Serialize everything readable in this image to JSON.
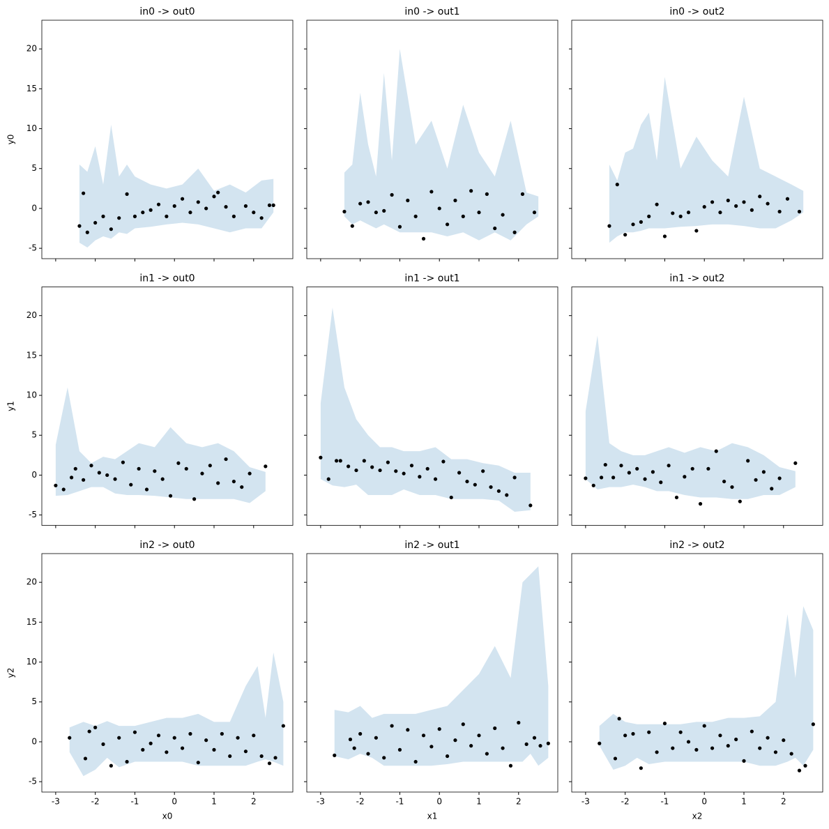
{
  "chart_data": [
    {
      "type": "scatter",
      "title": "in0 -> out0",
      "ylabel": "y0",
      "color": "#000000",
      "band_color": "#d3e4f0",
      "x": [
        -2.4,
        -2.3,
        -2.2,
        -2,
        -1.8,
        -1.6,
        -1.4,
        -1.2,
        -1,
        -0.8,
        -0.6,
        -0.4,
        -0.2,
        0,
        0.2,
        0.4,
        0.6,
        0.8,
        1,
        1.1,
        1.3,
        1.5,
        1.8,
        2,
        2.2,
        2.4,
        2.5
      ],
      "y": [
        -2.2,
        1.9,
        -3,
        -1.8,
        -1,
        -2.6,
        -1.2,
        1.8,
        -1,
        -0.5,
        -0.2,
        0.5,
        -1,
        0.3,
        1.2,
        -0.5,
        0.8,
        0,
        1.5,
        2,
        0.2,
        -1,
        0.3,
        -0.5,
        -1.2,
        0.4,
        0.4
      ],
      "band": {
        "x": [
          -2.4,
          -2.2,
          -2,
          -1.8,
          -1.6,
          -1.4,
          -1.2,
          -1,
          -0.6,
          -0.2,
          0.2,
          0.6,
          1,
          1.4,
          1.8,
          2.2,
          2.5
        ],
        "lower": [
          -4.3,
          -4.9,
          -4,
          -3.5,
          -3.8,
          -3,
          -3.2,
          -2.5,
          -2.3,
          -2,
          -1.8,
          -2,
          -2.5,
          -3,
          -2.5,
          -2.5,
          -0.5
        ],
        "upper": [
          5.5,
          4.6,
          7.8,
          3,
          10.5,
          4,
          5.5,
          4,
          3,
          2.5,
          3,
          5,
          2.2,
          3,
          2,
          3.5,
          3.7
        ]
      },
      "xlim": [
        -3.35,
        2.99
      ],
      "ylim": [
        -6.3,
        23.6
      ],
      "xticks": [
        -3,
        -2,
        -1,
        0,
        1,
        2
      ],
      "yticks": [
        -5,
        0,
        5,
        10,
        15,
        20
      ],
      "xtick_labels": false,
      "ytick_labels": true
    },
    {
      "type": "scatter",
      "title": "in0 -> out1",
      "color": "#000000",
      "band_color": "#d3e4f0",
      "x": [
        -2.4,
        -2.2,
        -2,
        -1.8,
        -1.6,
        -1.4,
        -1.2,
        -1,
        -0.8,
        -0.6,
        -0.4,
        -0.2,
        0,
        0.2,
        0.4,
        0.6,
        0.8,
        1,
        1.2,
        1.4,
        1.6,
        1.9,
        2.1,
        2.4
      ],
      "y": [
        -0.4,
        -2.2,
        0.6,
        0.8,
        -0.5,
        -0.3,
        1.7,
        -2.3,
        1,
        -1,
        -3.8,
        2.1,
        0,
        -2,
        1,
        -1,
        2.2,
        -0.5,
        1.8,
        -2.5,
        -0.8,
        -3,
        1.8,
        -0.5
      ],
      "band": {
        "x": [
          -2.4,
          -2.2,
          -2,
          -1.8,
          -1.6,
          -1.4,
          -1.2,
          -1,
          -0.6,
          -0.2,
          0.2,
          0.6,
          1,
          1.4,
          1.8,
          2.2,
          2.5
        ],
        "lower": [
          -1,
          -2,
          -1.5,
          -2,
          -2.5,
          -2,
          -2.5,
          -3,
          -3,
          -3,
          -3.5,
          -3,
          -4,
          -3,
          -4,
          -2,
          -1
        ],
        "upper": [
          4.5,
          5.5,
          14.5,
          8,
          4,
          17,
          6,
          20,
          8,
          11,
          5,
          13,
          7,
          4,
          11,
          2,
          1.5
        ]
      },
      "xlim": [
        -3.35,
        2.99
      ],
      "ylim": [
        -6.3,
        23.6
      ],
      "xticks": [
        -3,
        -2,
        -1,
        0,
        1,
        2
      ],
      "yticks": [
        -5,
        0,
        5,
        10,
        15,
        20
      ],
      "xtick_labels": false,
      "ytick_labels": false
    },
    {
      "type": "scatter",
      "title": "in0 -> out2",
      "color": "#000000",
      "band_color": "#d3e4f0",
      "x": [
        -2.4,
        -2.2,
        -2,
        -1.8,
        -1.6,
        -1.4,
        -1.2,
        -1,
        -0.8,
        -0.6,
        -0.4,
        -0.2,
        0,
        0.2,
        0.4,
        0.6,
        0.8,
        1,
        1.2,
        1.4,
        1.6,
        1.9,
        2.1,
        2.4
      ],
      "y": [
        -2.2,
        3,
        -3.3,
        -2,
        -1.7,
        -1,
        0.5,
        -3.5,
        -0.6,
        -1,
        -0.5,
        -2.8,
        0.2,
        0.8,
        -0.5,
        1,
        0.3,
        0.8,
        -0.2,
        1.5,
        0.6,
        -0.4,
        1.2,
        -0.4
      ],
      "band": {
        "x": [
          -2.4,
          -2.2,
          -2,
          -1.8,
          -1.6,
          -1.4,
          -1.2,
          -1,
          -0.6,
          -0.2,
          0.2,
          0.6,
          1,
          1.4,
          1.8,
          2.2,
          2.5
        ],
        "lower": [
          -4.3,
          -3.5,
          -3,
          -3,
          -2.8,
          -2.5,
          -2.5,
          -2.5,
          -2.3,
          -2.2,
          -2,
          -2,
          -2.2,
          -2.5,
          -2.5,
          -1.5,
          -0.5
        ],
        "upper": [
          5.5,
          3.5,
          7,
          7.5,
          10.5,
          12,
          6,
          16.5,
          5,
          9,
          6,
          4,
          14,
          5,
          4,
          3,
          2.2
        ]
      },
      "xlim": [
        -3.35,
        2.99
      ],
      "ylim": [
        -6.3,
        23.6
      ],
      "xticks": [
        -3,
        -2,
        -1,
        0,
        1,
        2
      ],
      "yticks": [
        -5,
        0,
        5,
        10,
        15,
        20
      ],
      "xtick_labels": false,
      "ytick_labels": false
    },
    {
      "type": "scatter",
      "title": "in1 -> out0",
      "ylabel": "y1",
      "color": "#000000",
      "band_color": "#d3e4f0",
      "x": [
        -3,
        -2.8,
        -2.6,
        -2.5,
        -2.3,
        -2.1,
        -1.9,
        -1.7,
        -1.5,
        -1.3,
        -1.1,
        -0.9,
        -0.7,
        -0.5,
        -0.3,
        -0.1,
        0.1,
        0.3,
        0.5,
        0.7,
        0.9,
        1.1,
        1.3,
        1.5,
        1.7,
        1.9,
        2.3
      ],
      "y": [
        -1.3,
        -1.8,
        -0.3,
        0.8,
        -0.6,
        1.2,
        0.3,
        0,
        -0.5,
        1.6,
        -1.2,
        0.8,
        -1.8,
        0.5,
        -0.5,
        -2.6,
        1.5,
        0.8,
        -3,
        0.2,
        1.2,
        -1,
        2,
        -0.8,
        -1.5,
        0.2,
        1.1
      ],
      "band": {
        "x": [
          -3,
          -2.7,
          -2.4,
          -2.1,
          -1.8,
          -1.5,
          -1.2,
          -0.9,
          -0.5,
          -0.1,
          0.3,
          0.7,
          1.1,
          1.5,
          1.9,
          2.3
        ],
        "lower": [
          -2.6,
          -2.5,
          -2,
          -1.5,
          -1.5,
          -2.3,
          -2.5,
          -2.5,
          -2.6,
          -2.8,
          -3,
          -3,
          -3,
          -3,
          -3.5,
          -2
        ],
        "upper": [
          3.8,
          11,
          3,
          1.5,
          2.3,
          2,
          3,
          4,
          3.5,
          6,
          4,
          3.5,
          4,
          3,
          1,
          0.4
        ]
      },
      "xlim": [
        -3.35,
        2.99
      ],
      "ylim": [
        -6.3,
        23.6
      ],
      "xticks": [
        -3,
        -2,
        -1,
        0,
        1,
        2
      ],
      "yticks": [
        -5,
        0,
        5,
        10,
        15,
        20
      ],
      "xtick_labels": false,
      "ytick_labels": true
    },
    {
      "type": "scatter",
      "title": "in1 -> out1",
      "color": "#000000",
      "band_color": "#d3e4f0",
      "x": [
        -3,
        -2.8,
        -2.6,
        -2.5,
        -2.3,
        -2.1,
        -1.9,
        -1.7,
        -1.5,
        -1.3,
        -1.1,
        -0.9,
        -0.7,
        -0.5,
        -0.3,
        -0.1,
        0.1,
        0.3,
        0.5,
        0.7,
        0.9,
        1.1,
        1.3,
        1.5,
        1.7,
        1.9,
        2.3
      ],
      "y": [
        2.2,
        -0.5,
        1.8,
        1.8,
        1.1,
        0.6,
        1.8,
        1,
        0.6,
        1.6,
        0.5,
        0.2,
        1.2,
        -0.2,
        0.8,
        -0.5,
        1.7,
        -2.8,
        0.3,
        -0.8,
        -1.2,
        0.5,
        -1.5,
        -2,
        -2.5,
        -0.3,
        -3.8
      ],
      "band": {
        "x": [
          -3,
          -2.7,
          -2.4,
          -2.1,
          -1.8,
          -1.5,
          -1.2,
          -0.9,
          -0.5,
          -0.1,
          0.3,
          0.7,
          1.1,
          1.5,
          1.9,
          2.3
        ],
        "lower": [
          -0.5,
          -1.3,
          -1.5,
          -1.2,
          -2.5,
          -2.5,
          -2.5,
          -1.8,
          -2.5,
          -2.5,
          -3,
          -3,
          -3,
          -3.2,
          -4.6,
          -4.4
        ],
        "upper": [
          9,
          21,
          11,
          7,
          5,
          3.5,
          3.5,
          3,
          3,
          3.5,
          2,
          2,
          1.5,
          1.2,
          0.3,
          0.3
        ]
      },
      "xlim": [
        -3.35,
        2.99
      ],
      "ylim": [
        -6.3,
        23.6
      ],
      "xticks": [
        -3,
        -2,
        -1,
        0,
        1,
        2
      ],
      "yticks": [
        -5,
        0,
        5,
        10,
        15,
        20
      ],
      "xtick_labels": false,
      "ytick_labels": false
    },
    {
      "type": "scatter",
      "title": "in1 -> out2",
      "color": "#000000",
      "band_color": "#d3e4f0",
      "x": [
        -3,
        -2.8,
        -2.6,
        -2.5,
        -2.3,
        -2.1,
        -1.9,
        -1.7,
        -1.5,
        -1.3,
        -1.1,
        -0.9,
        -0.7,
        -0.5,
        -0.3,
        -0.1,
        0.1,
        0.3,
        0.5,
        0.7,
        0.9,
        1.1,
        1.3,
        1.5,
        1.7,
        1.9,
        2.3
      ],
      "y": [
        -0.4,
        -1.3,
        -0.3,
        1.3,
        -0.3,
        1.2,
        0.3,
        0.8,
        -0.5,
        0.4,
        -0.9,
        1.2,
        -2.8,
        -0.2,
        0.8,
        -3.6,
        0.8,
        3,
        -0.8,
        -1.5,
        -3.3,
        1.8,
        -0.6,
        0.4,
        -1.7,
        -0.4,
        1.5
      ],
      "band": {
        "x": [
          -3,
          -2.7,
          -2.4,
          -2.1,
          -1.8,
          -1.5,
          -1.2,
          -0.9,
          -0.5,
          -0.1,
          0.3,
          0.7,
          1.1,
          1.5,
          1.9,
          2.3
        ],
        "lower": [
          -0.5,
          -1.8,
          -1.5,
          -1.5,
          -1.2,
          -1.5,
          -2,
          -2,
          -2.5,
          -2.8,
          -2.8,
          -3,
          -3,
          -2.5,
          -2.5,
          -1.5
        ],
        "upper": [
          8,
          17.5,
          4,
          3,
          2.5,
          2.5,
          3,
          3.5,
          2.8,
          3.5,
          3,
          4,
          3.5,
          2.5,
          1,
          0.5
        ]
      },
      "xlim": [
        -3.35,
        2.99
      ],
      "ylim": [
        -6.3,
        23.6
      ],
      "xticks": [
        -3,
        -2,
        -1,
        0,
        1,
        2
      ],
      "yticks": [
        -5,
        0,
        5,
        10,
        15,
        20
      ],
      "xtick_labels": false,
      "ytick_labels": false
    },
    {
      "type": "scatter",
      "title": "in2 -> out0",
      "xlabel": "x0",
      "ylabel": "y2",
      "color": "#000000",
      "band_color": "#d3e4f0",
      "x": [
        -2.65,
        -2.25,
        -2.15,
        -2,
        -1.8,
        -1.6,
        -1.4,
        -1.2,
        -1,
        -0.8,
        -0.6,
        -0.4,
        -0.2,
        0,
        0.2,
        0.4,
        0.6,
        0.8,
        1,
        1.2,
        1.4,
        1.6,
        1.8,
        2,
        2.2,
        2.4,
        2.55,
        2.75
      ],
      "y": [
        0.5,
        -2.1,
        1.3,
        1.8,
        -0.3,
        -3,
        0.5,
        -2.5,
        1.2,
        -1,
        -0.2,
        0.8,
        -1.3,
        0.5,
        -0.8,
        1,
        -2.6,
        0.2,
        -1,
        1,
        -1.8,
        0.5,
        -1.2,
        0.8,
        -1.8,
        -2.7,
        -2,
        2
      ],
      "band": {
        "x": [
          -2.65,
          -2.3,
          -2,
          -1.7,
          -1.4,
          -1,
          -0.6,
          -0.2,
          0.2,
          0.6,
          1,
          1.4,
          1.8,
          2.1,
          2.3,
          2.5,
          2.75
        ],
        "lower": [
          -1.3,
          -4.3,
          -3.5,
          -2,
          -3.2,
          -2.5,
          -2.5,
          -2.5,
          -2.5,
          -3,
          -3,
          -3,
          -3,
          -2.5,
          -2.2,
          -2.5,
          -3
        ],
        "upper": [
          1.8,
          2.5,
          2,
          2.6,
          2,
          2,
          2.5,
          3,
          3,
          3.5,
          2.5,
          2.5,
          7,
          9.5,
          3,
          11.2,
          5
        ]
      },
      "xlim": [
        -3.35,
        2.99
      ],
      "ylim": [
        -6.3,
        23.6
      ],
      "xticks": [
        -3,
        -2,
        -1,
        0,
        1,
        2
      ],
      "yticks": [
        -5,
        0,
        5,
        10,
        15,
        20
      ],
      "xtick_labels": true,
      "ytick_labels": true
    },
    {
      "type": "scatter",
      "title": "in2 -> out1",
      "xlabel": "x1",
      "color": "#000000",
      "band_color": "#d3e4f0",
      "x": [
        -2.65,
        -2.25,
        -2.15,
        -2,
        -1.8,
        -1.6,
        -1.4,
        -1.2,
        -1,
        -0.8,
        -0.6,
        -0.4,
        -0.2,
        0,
        0.2,
        0.4,
        0.6,
        0.8,
        1,
        1.2,
        1.4,
        1.6,
        1.8,
        2,
        2.2,
        2.4,
        2.55,
        2.75
      ],
      "y": [
        -1.7,
        0.3,
        -0.8,
        1,
        -1.5,
        0.5,
        -2,
        2,
        -1,
        1.5,
        -2.5,
        0.8,
        -0.6,
        1.6,
        -1.8,
        0.2,
        2.2,
        -0.5,
        0.8,
        -1.5,
        1.7,
        -0.8,
        -3,
        2.4,
        -0.3,
        0.5,
        -0.5,
        -0.2
      ],
      "band": {
        "x": [
          -2.65,
          -2.3,
          -2,
          -1.7,
          -1.4,
          -1,
          -0.6,
          -0.2,
          0.2,
          0.6,
          1,
          1.4,
          1.8,
          2.1,
          2.3,
          2.5,
          2.75
        ],
        "lower": [
          -1.8,
          -2.2,
          -1.5,
          -2,
          -3,
          -3,
          -3,
          -3,
          -2.8,
          -2.5,
          -2.5,
          -2.5,
          -2.5,
          -2.5,
          -1.5,
          -3,
          -2
        ],
        "upper": [
          4,
          3.7,
          4.5,
          3,
          3.5,
          3.5,
          3.5,
          4,
          4.5,
          6.5,
          8.5,
          12,
          8,
          20,
          21,
          22,
          7
        ]
      },
      "xlim": [
        -3.35,
        2.99
      ],
      "ylim": [
        -6.3,
        23.6
      ],
      "xticks": [
        -3,
        -2,
        -1,
        0,
        1,
        2
      ],
      "yticks": [
        -5,
        0,
        5,
        10,
        15,
        20
      ],
      "xtick_labels": true,
      "ytick_labels": false
    },
    {
      "type": "scatter",
      "title": "in2 -> out2",
      "xlabel": "x2",
      "color": "#000000",
      "band_color": "#d3e4f0",
      "x": [
        -2.65,
        -2.25,
        -2.15,
        -2,
        -1.8,
        -1.6,
        -1.4,
        -1.2,
        -1,
        -0.8,
        -0.6,
        -0.4,
        -0.2,
        0,
        0.2,
        0.4,
        0.6,
        0.8,
        1,
        1.2,
        1.4,
        1.6,
        1.8,
        2,
        2.2,
        2.4,
        2.55,
        2.75
      ],
      "y": [
        -0.2,
        -2.1,
        2.9,
        0.8,
        1,
        -3.3,
        1.2,
        -1.3,
        2.3,
        -0.8,
        1.2,
        0,
        -1,
        2,
        -0.8,
        0.8,
        -0.5,
        0.3,
        -2.4,
        1.3,
        -0.8,
        0.5,
        -1.3,
        0.2,
        -1.5,
        -3.6,
        -3,
        2.2
      ],
      "band": {
        "x": [
          -2.65,
          -2.3,
          -2,
          -1.7,
          -1.4,
          -1,
          -0.6,
          -0.2,
          0.2,
          0.6,
          1,
          1.4,
          1.8,
          2.1,
          2.3,
          2.5,
          2.75
        ],
        "lower": [
          -0.5,
          -3.5,
          -3,
          -2,
          -2.8,
          -2.5,
          -2.5,
          -2.5,
          -2.5,
          -2.5,
          -2.5,
          -3,
          -3,
          -2.5,
          -2,
          -3,
          -1
        ],
        "upper": [
          2,
          3.5,
          2.5,
          2.2,
          2.2,
          2.2,
          2.2,
          2.5,
          2.5,
          3,
          3,
          3.2,
          5,
          16,
          8,
          17,
          14
        ]
      },
      "xlim": [
        -3.35,
        2.99
      ],
      "ylim": [
        -6.3,
        23.6
      ],
      "xticks": [
        -3,
        -2,
        -1,
        0,
        1,
        2
      ],
      "yticks": [
        -5,
        0,
        5,
        10,
        15,
        20
      ],
      "xtick_labels": true,
      "ytick_labels": false
    }
  ]
}
